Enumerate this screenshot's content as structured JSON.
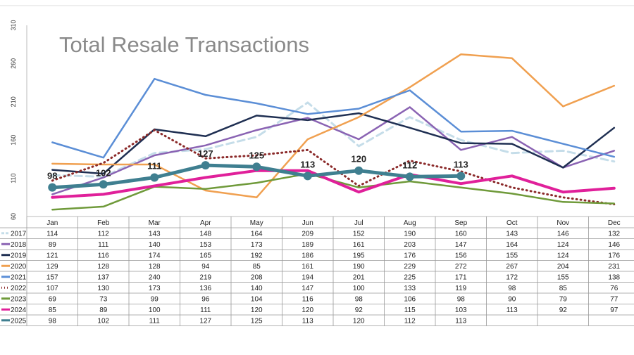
{
  "chart_data": {
    "type": "line",
    "title": "Total Resale Transactions",
    "categories": [
      "Jan",
      "Feb",
      "Mar",
      "Apr",
      "May",
      "Jun",
      "Jul",
      "Aug",
      "Sep",
      "Oct",
      "Nov",
      "Dec"
    ],
    "ylim": [
      60,
      310
    ],
    "yticks": [
      "60",
      "110",
      "160",
      "210",
      "260",
      "310"
    ],
    "grid": false,
    "legend": "data-table-below",
    "series": [
      {
        "name": "2017",
        "color": "#c5dde9",
        "style": "dashed",
        "values": [
          114,
          112,
          143,
          148,
          164,
          209,
          152,
          190,
          160,
          143,
          146,
          132
        ]
      },
      {
        "name": "2018",
        "color": "#8a63b3",
        "style": "solid",
        "values": [
          89,
          111,
          140,
          153,
          173,
          189,
          161,
          203,
          147,
          164,
          124,
          146
        ]
      },
      {
        "name": "2019",
        "color": "#1f2f52",
        "style": "solid",
        "values": [
          121,
          116,
          174,
          165,
          192,
          186,
          195,
          176,
          156,
          155,
          124,
          176
        ]
      },
      {
        "name": "2020",
        "color": "#f0a050",
        "style": "solid",
        "values": [
          129,
          128,
          128,
          94,
          85,
          161,
          190,
          229,
          272,
          267,
          204,
          231
        ]
      },
      {
        "name": "2021",
        "color": "#5b8ed6",
        "style": "solid",
        "values": [
          157,
          137,
          240,
          219,
          208,
          194,
          201,
          225,
          171,
          172,
          155,
          138
        ]
      },
      {
        "name": "2022",
        "color": "#8b2a2a",
        "style": "dotted",
        "values": [
          107,
          130,
          173,
          136,
          140,
          147,
          100,
          133,
          119,
          98,
          85,
          76
        ]
      },
      {
        "name": "2023",
        "color": "#6f9a3a",
        "style": "solid",
        "values": [
          69,
          73,
          99,
          96,
          104,
          116,
          98,
          106,
          98,
          90,
          79,
          77
        ]
      },
      {
        "name": "2024",
        "color": "#e0209a",
        "style": "solid",
        "values": [
          85,
          89,
          100,
          111,
          120,
          120,
          92,
          115,
          103,
          113,
          92,
          97
        ]
      },
      {
        "name": "2025",
        "color": "#3f7f90",
        "style": "markers",
        "values": [
          98,
          102,
          111,
          127,
          125,
          113,
          120,
          112,
          113,
          null,
          null,
          null
        ]
      }
    ],
    "data_labels": {
      "series": "2025",
      "values": [
        "98",
        "102",
        "111",
        "127",
        "125",
        "113",
        "120",
        "112",
        "113"
      ]
    },
    "table": {
      "2017": [
        "114",
        "112",
        "143",
        "148",
        "164",
        "209",
        "152",
        "190",
        "160",
        "143",
        "146",
        "132"
      ],
      "2018": [
        "89",
        "111",
        "140",
        "153",
        "173",
        "189",
        "161",
        "203",
        "147",
        "164",
        "124",
        "146"
      ],
      "2019": [
        "121",
        "116",
        "174",
        "165",
        "192",
        "186",
        "195",
        "176",
        "156",
        "155",
        "124",
        "176"
      ],
      "2020": [
        "129",
        "128",
        "128",
        "94",
        "85",
        "161",
        "190",
        "229",
        "272",
        "267",
        "204",
        "231"
      ],
      "2021": [
        "157",
        "137",
        "240",
        "219",
        "208",
        "194",
        "201",
        "225",
        "171",
        "172",
        "155",
        "138"
      ],
      "2022": [
        "107",
        "130",
        "173",
        "136",
        "140",
        "147",
        "100",
        "133",
        "119",
        "98",
        "85",
        "76"
      ],
      "2023": [
        "69",
        "73",
        "99",
        "96",
        "104",
        "116",
        "98",
        "106",
        "98",
        "90",
        "79",
        "77"
      ],
      "2024": [
        "85",
        "89",
        "100",
        "111",
        "120",
        "120",
        "92",
        "115",
        "103",
        "113",
        "92",
        "97"
      ],
      "2025": [
        "98",
        "102",
        "111",
        "127",
        "125",
        "113",
        "120",
        "112",
        "113",
        "",
        "",
        ""
      ]
    }
  }
}
